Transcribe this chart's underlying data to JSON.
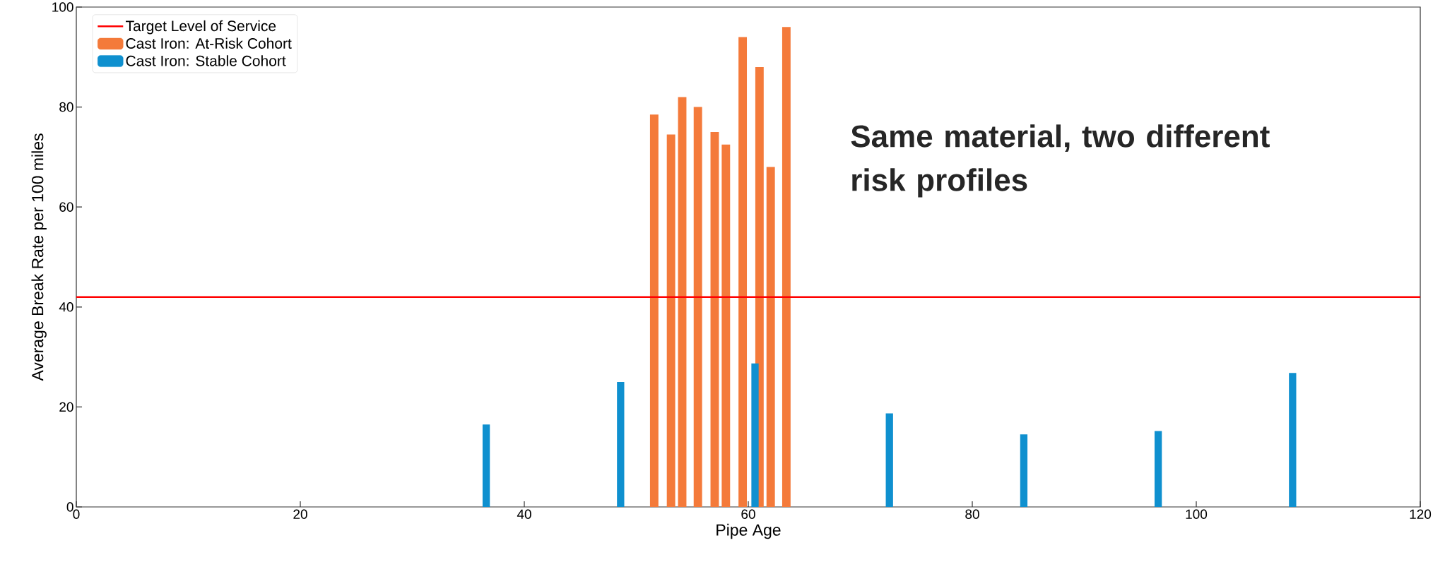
{
  "chart_data": {
    "type": "bar",
    "xlabel": "Pipe Age",
    "ylabel": "Average Break Rate per 100 miles",
    "series": [
      {
        "name": "Cast Iron: At-Risk Cohort",
        "color": "#f47a3a",
        "x": [
          51.6,
          53.1,
          54.1,
          55.5,
          57.0,
          58.0,
          59.5,
          61.0,
          62.0,
          63.4
        ],
        "values": [
          78.5,
          74.5,
          82,
          80,
          75,
          72.5,
          94,
          88,
          68,
          96
        ]
      },
      {
        "name": "Cast Iron: Stable Cohort",
        "color": "#0f90cf",
        "x": [
          36.6,
          48.6,
          60.6,
          72.6,
          84.6,
          96.6,
          108.6
        ],
        "values": [
          16.5,
          25,
          28.7,
          18.7,
          14.5,
          15.2,
          26.8
        ]
      }
    ],
    "ref_lines": [
      {
        "axis": "y",
        "value": 42,
        "label": "Target Level of Service",
        "color": "#ff0000"
      }
    ],
    "annotations": [
      "Same material, two different risk profiles"
    ],
    "xlim": [
      0,
      120
    ],
    "ylim": [
      0,
      100
    ],
    "xticks": [
      0,
      20,
      40,
      60,
      80,
      100,
      120
    ],
    "yticks": [
      0,
      20,
      40,
      60,
      80,
      100
    ],
    "legend": "top left"
  }
}
